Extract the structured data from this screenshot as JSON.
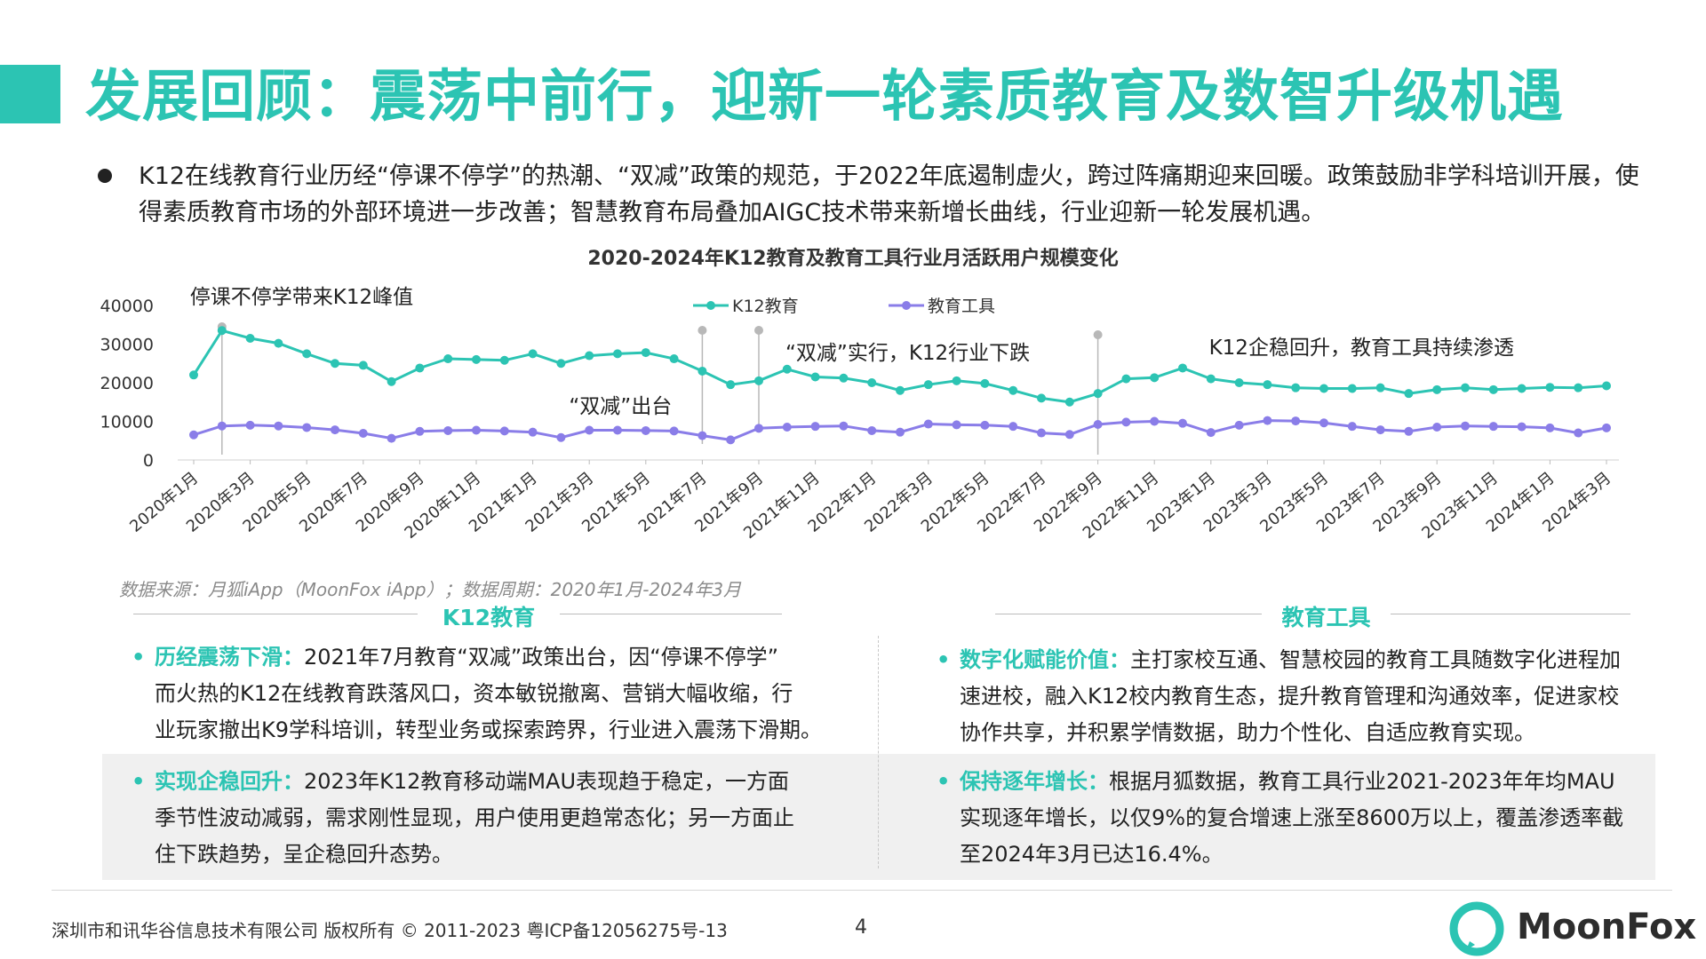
{
  "title": "发展回顾：震荡中前行，迎新一轮素质教育及数智升级机遇",
  "intro": "K12在线教育行业历经“停课不停学”的热潮、“双减”政策的规范，于2022年底遏制虚火，跨过阵痛期迎来回暖。政策鼓励非学科培训开展，使得素质教育市场的外部环境进一步改善；智慧教育布局叠加AIGC技术带来新增长曲线，行业迎新一轮发展机遇。",
  "chart_data": {
    "type": "line",
    "title": "2020-2024年K12教育及教育工具行业月活跃用户规模变化",
    "ylim": [
      0,
      40000
    ],
    "yticks": [
      "40000",
      "30000",
      "20000",
      "10000",
      "0"
    ],
    "categories": [
      "2020年1月",
      "2020年2月",
      "2020年3月",
      "2020年4月",
      "2020年5月",
      "2020年6月",
      "2020年7月",
      "2020年8月",
      "2020年9月",
      "2020年10月",
      "2020年11月",
      "2020年12月",
      "2021年1月",
      "2021年2月",
      "2021年3月",
      "2021年4月",
      "2021年5月",
      "2021年6月",
      "2021年7月",
      "2021年8月",
      "2021年9月",
      "2021年10月",
      "2021年11月",
      "2021年12月",
      "2022年1月",
      "2022年2月",
      "2022年3月",
      "2022年4月",
      "2022年5月",
      "2022年6月",
      "2022年7月",
      "2022年8月",
      "2022年9月",
      "2022年10月",
      "2022年11月",
      "2022年12月",
      "2023年1月",
      "2023年2月",
      "2023年3月",
      "2023年4月",
      "2023年5月",
      "2023年6月",
      "2023年7月",
      "2023年8月",
      "2023年9月",
      "2023年10月",
      "2023年11月",
      "2023年12月",
      "2024年1月",
      "2024年2月",
      "2024年3月"
    ],
    "xtick_labels": [
      "2020年1月",
      "2020年3月",
      "2020年5月",
      "2020年7月",
      "2020年9月",
      "2020年11月",
      "2021年1月",
      "2021年3月",
      "2021年5月",
      "2021年7月",
      "2021年9月",
      "2021年11月",
      "2022年1月",
      "2022年3月",
      "2022年5月",
      "2022年7月",
      "2022年9月",
      "2022年11月",
      "2023年1月",
      "2023年3月",
      "2023年5月",
      "2023年7月",
      "2023年9月",
      "2023年11月",
      "2024年1月",
      "2024年3月"
    ],
    "series": [
      {
        "name": "K12教育",
        "color": "#2cc4b3",
        "values": [
          22000,
          33500,
          31500,
          30200,
          27500,
          25000,
          24500,
          20300,
          23800,
          26200,
          26000,
          25800,
          27500,
          25000,
          27000,
          27500,
          27800,
          26200,
          23000,
          19500,
          20500,
          23500,
          21500,
          21200,
          20000,
          18000,
          19500,
          20500,
          19800,
          18000,
          16000,
          15000,
          17200,
          21000,
          21300,
          23800,
          21000,
          20000,
          19500,
          18700,
          18500,
          18500,
          18700,
          17200,
          18200,
          18700,
          18200,
          18500,
          18800,
          18700,
          19200
        ]
      },
      {
        "name": "教育工具",
        "color": "#8a7de8",
        "values": [
          6500,
          8800,
          9000,
          8800,
          8400,
          7800,
          6900,
          5600,
          7400,
          7600,
          7700,
          7500,
          7200,
          5800,
          7700,
          7700,
          7600,
          7500,
          6300,
          5200,
          8200,
          8500,
          8700,
          8800,
          7600,
          7200,
          9300,
          9100,
          9000,
          8700,
          7000,
          6600,
          9200,
          9800,
          10000,
          9500,
          7100,
          9000,
          10200,
          10100,
          9600,
          8700,
          7800,
          7400,
          8500,
          8800,
          8700,
          8600,
          8300,
          7000,
          8300
        ]
      }
    ],
    "annotations": [
      {
        "text": "停课不停学带来K12峰值",
        "index": 1
      },
      {
        "text": "“双减”出台",
        "index": 18
      },
      {
        "text": "“双减”实行，K12行业下跌",
        "index": 20
      },
      {
        "text": "K12企稳回升，教育工具持续渗透",
        "index": 32
      }
    ],
    "legend": "top"
  },
  "source": "数据来源：月狐iApp（MoonFox iApp）；数据周期：2020年1月-2024年3月",
  "left": {
    "title": "K12教育",
    "p1_head": "历经震荡下滑：",
    "p1_l1": "2021年7月教育“双减”政策出台，因“停课不停学”",
    "p1_l2": "而火热的K12在线教育跌落风口，资本敏锐撤离、营销大幅收缩，行",
    "p1_l3": "业玩家撤出K9学科培训，转型业务或探索跨界，行业进入震荡下滑期。",
    "p2_head": "实现企稳回升：",
    "p2_l1": "2023年K12教育移动端MAU表现趋于稳定，一方面",
    "p2_l2": "季节性波动减弱，需求刚性显现，用户使用更趋常态化；另一方面止",
    "p2_l3": "住下跌趋势，呈企稳回升态势。"
  },
  "right": {
    "title": "教育工具",
    "p1_head": "数字化赋能价值：",
    "p1_l1": "主打家校互通、智慧校园的教育工具随数字化进程加",
    "p1_l2": "速进校，融入K12校内教育生态，提升教育管理和沟通效率，促进家校",
    "p1_l3": "协作共享，并积累学情数据，助力个性化、自适应教育实现。",
    "p2_head": "保持逐年增长：",
    "p2_l1": "根据月狐数据，教育工具行业2021-2023年年均MAU",
    "p2_l2": "实现逐年增长，以仅9%的复合增速上涨至8600万以上，覆盖渗透率截",
    "p2_l3": "至2024年3月已达16.4%。"
  },
  "bullet": "•",
  "footer": "深圳市和讯华谷信息技术有限公司 版权所有 © 2011-2023 粤ICP备12056275号-13",
  "page_number": "4",
  "logo_text": "MoonFox",
  "accent": "#2cc4b3"
}
